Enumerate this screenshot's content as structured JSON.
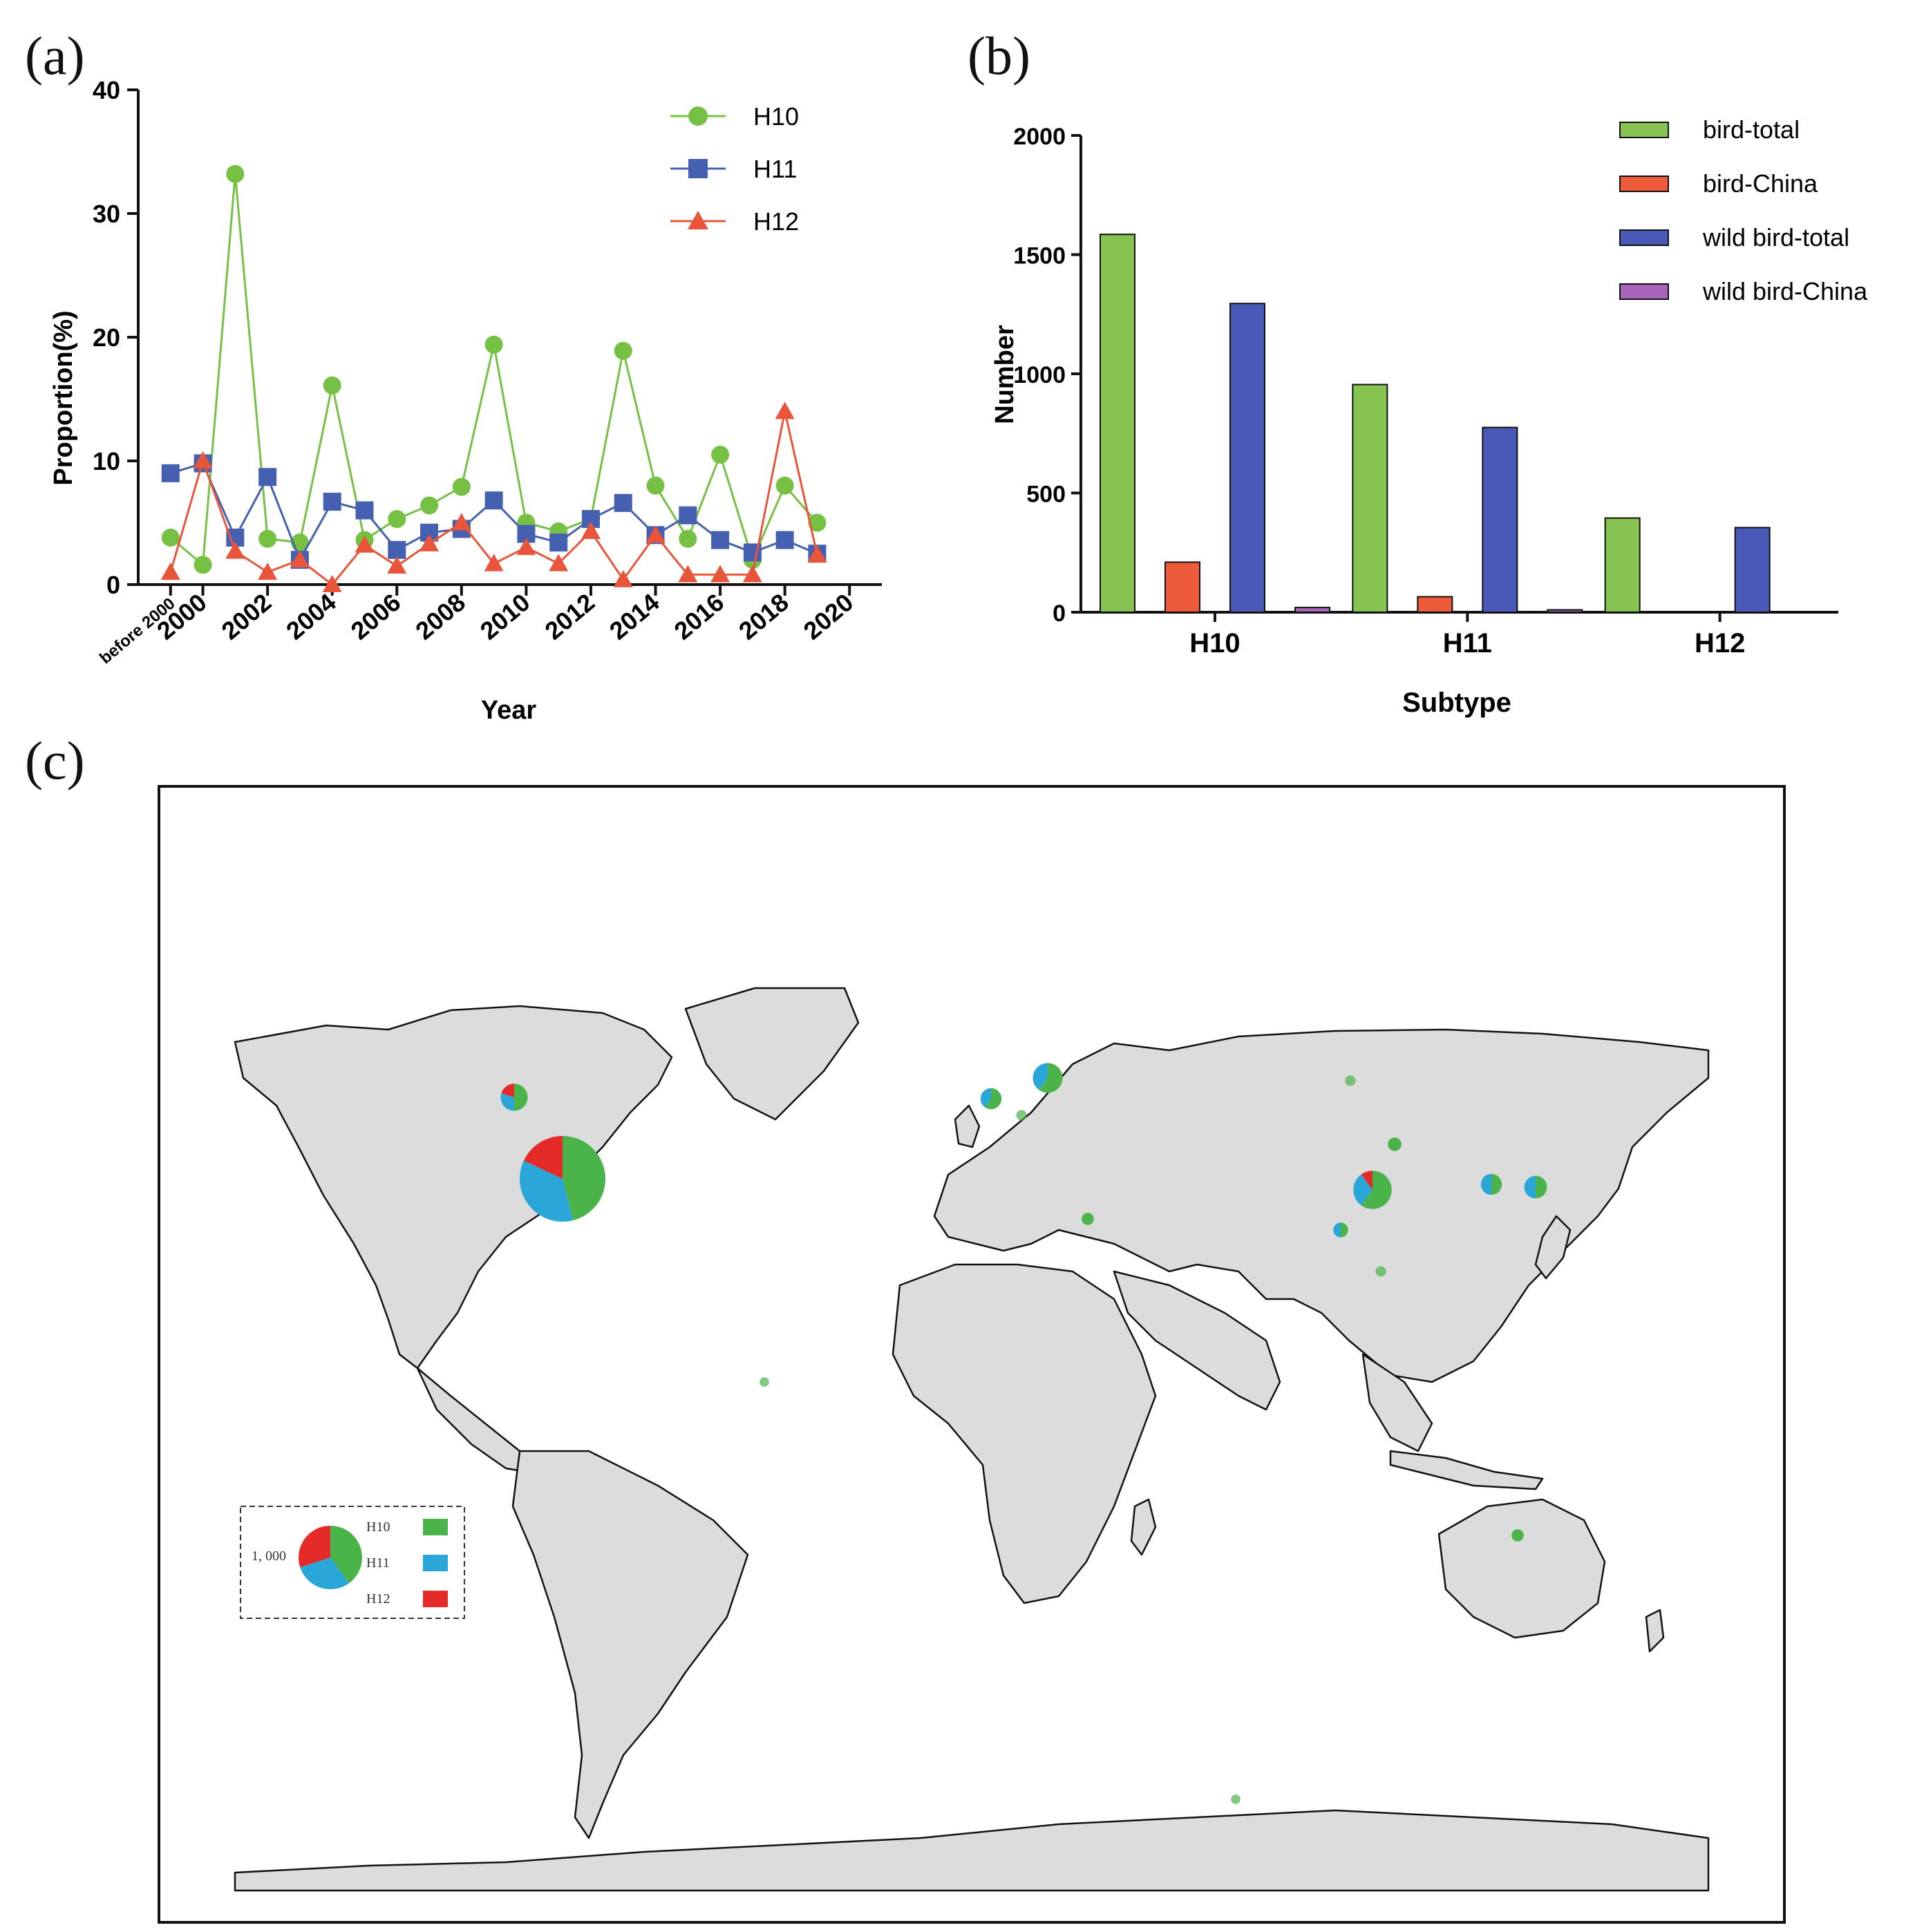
{
  "panel_labels": {
    "a": "(a)",
    "b": "(b)",
    "c": "(c)"
  },
  "colors": {
    "h10": "#76c043",
    "h11": "#4560b0",
    "h12": "#e8553a",
    "bird_total": "#86c351",
    "bird_china": "#ee5b3a",
    "wild_total": "#4a58b8",
    "wild_china": "#a764b9",
    "land": "#dcdcdc",
    "pie_h10": "#4ab44a",
    "pie_h11": "#2aa6d8",
    "pie_h12": "#e52a2a"
  },
  "chart_data": [
    {
      "type": "line",
      "title": "(a)",
      "xlabel": "Year",
      "ylabel": "Proportion(%)",
      "ylim": [
        0,
        40
      ],
      "yticks": [
        "0",
        "10",
        "20",
        "30",
        "40"
      ],
      "x": [
        "before 2000",
        "2000",
        "2001",
        "2002",
        "2003",
        "2004",
        "2005",
        "2006",
        "2007",
        "2008",
        "2009",
        "2010",
        "2011",
        "2012",
        "2013",
        "2014",
        "2015",
        "2016",
        "2017",
        "2018",
        "2019"
      ],
      "xtick_labels": [
        "before 2000",
        "2000",
        "2002",
        "2004",
        "2006",
        "2008",
        "2010",
        "2012",
        "2014",
        "2016",
        "2018",
        "2020"
      ],
      "series": [
        {
          "name": "H10",
          "marker": "circle",
          "values": [
            3.8,
            1.6,
            33.2,
            3.7,
            3.4,
            16.1,
            3.6,
            5.3,
            6.4,
            7.9,
            19.4,
            5.0,
            4.3,
            5.3,
            18.9,
            8.0,
            3.7,
            10.5,
            2.0,
            8.0,
            5.0
          ]
        },
        {
          "name": "H11",
          "marker": "square",
          "values": [
            9.0,
            9.8,
            3.8,
            8.7,
            2.0,
            6.7,
            6.0,
            2.8,
            4.2,
            4.5,
            6.8,
            4.1,
            3.4,
            5.3,
            6.6,
            4.0,
            5.6,
            3.6,
            2.6,
            3.6,
            2.5
          ]
        },
        {
          "name": "H12",
          "marker": "triangle",
          "values": [
            1.0,
            10.0,
            2.7,
            1.0,
            2.0,
            0.0,
            3.2,
            1.5,
            3.3,
            5.0,
            1.7,
            3.0,
            1.7,
            4.3,
            0.4,
            4.0,
            0.8,
            0.8,
            0.8,
            14.0,
            2.4
          ]
        }
      ],
      "legend": "top-right"
    },
    {
      "type": "bar",
      "title": "(b)",
      "xlabel": "Subtype",
      "ylabel": "Number",
      "ylim": [
        0,
        2000
      ],
      "yticks": [
        "0",
        "500",
        "1000",
        "1500",
        "2000"
      ],
      "categories": [
        "H10",
        "H11",
        "H12"
      ],
      "series": [
        {
          "name": "bird-total",
          "values": [
            1585,
            955,
            395
          ]
        },
        {
          "name": "bird-China",
          "values": [
            210,
            65,
            0
          ]
        },
        {
          "name": "wild bird-total",
          "values": [
            1295,
            775,
            355
          ]
        },
        {
          "name": "wild bird-China",
          "values": [
            20,
            10,
            0
          ]
        }
      ],
      "legend": "top-right"
    },
    {
      "type": "map-pie",
      "title": "(c)",
      "legend": {
        "scale_label": "1, 000",
        "entries": [
          "H10",
          "H11",
          "H12"
        ]
      },
      "pies": [
        {
          "region": "USA",
          "size": 1000,
          "shares": [
            0.46,
            0.36,
            0.18
          ]
        },
        {
          "region": "Canada",
          "size": 100,
          "shares": [
            0.5,
            0.3,
            0.2
          ]
        },
        {
          "region": "China",
          "size": 200,
          "shares": [
            0.6,
            0.3,
            0.1
          ]
        },
        {
          "region": "Sweden",
          "size": 120,
          "shares": [
            0.6,
            0.4,
            0.0
          ]
        },
        {
          "region": "Netherlands",
          "size": 60,
          "shares": [
            0.6,
            0.4,
            0.0
          ]
        },
        {
          "region": "Japan",
          "size": 70,
          "shares": [
            0.5,
            0.5,
            0.0
          ]
        },
        {
          "region": "Korea",
          "size": 60,
          "shares": [
            0.5,
            0.5,
            0.0
          ]
        },
        {
          "region": "Bangladesh",
          "size": 30,
          "shares": [
            0.5,
            0.5,
            0.0
          ]
        },
        {
          "region": "Mongolia",
          "size": 25,
          "shares": [
            1,
            0,
            0
          ]
        },
        {
          "region": "Russia",
          "size": 15,
          "shares": [
            1,
            0,
            0
          ]
        },
        {
          "region": "Egypt",
          "size": 20,
          "shares": [
            1,
            0,
            0
          ]
        },
        {
          "region": "Australia",
          "size": 20,
          "shares": [
            1,
            0,
            0
          ]
        },
        {
          "region": "Brazil",
          "size": 12,
          "shares": [
            1,
            0,
            0
          ]
        },
        {
          "region": "Antarctica",
          "size": 12,
          "shares": [
            1,
            0,
            0
          ]
        },
        {
          "region": "Thailand",
          "size": 15,
          "shares": [
            1,
            0,
            0
          ]
        },
        {
          "region": "Germany",
          "size": 15,
          "shares": [
            1,
            0,
            0
          ]
        }
      ]
    }
  ]
}
